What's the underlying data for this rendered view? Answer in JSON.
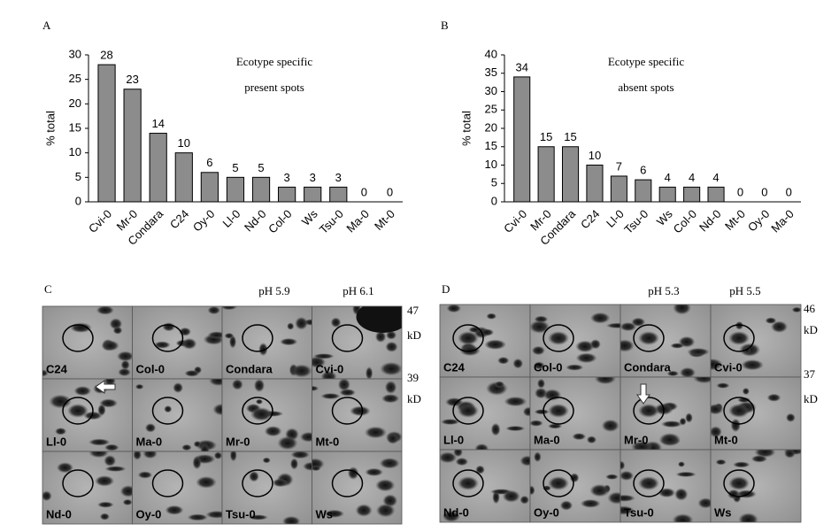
{
  "chart_data": [
    {
      "type": "bar",
      "panel": "A",
      "title": [
        "Ecotype specific",
        "present spots"
      ],
      "ylabel": "% total",
      "categories": [
        "Cvi-0",
        "Mr-0",
        "Condara",
        "C24",
        "Oy-0",
        "Ll-0",
        "Nd-0",
        "Col-0",
        "Ws",
        "Tsu-0",
        "Ma-0",
        "Mt-0"
      ],
      "values": [
        28,
        23,
        14,
        10,
        6,
        5,
        5,
        3,
        3,
        3,
        0,
        0
      ],
      "color": "#8c8c8c",
      "ylim": [
        0,
        30
      ],
      "yticks": [
        0,
        5,
        10,
        15,
        20,
        25,
        30
      ]
    },
    {
      "type": "bar",
      "panel": "B",
      "title": [
        "Ecotype specific",
        "absent spots"
      ],
      "ylabel": "% total",
      "categories": [
        "Cvi-0",
        "Mr-0",
        "Condara",
        "C24",
        "Ll-0",
        "Tsu-0",
        "Ws",
        "Col-0",
        "Nd-0",
        "Mt-0",
        "Oy-0",
        "Ma-0"
      ],
      "values": [
        34,
        15,
        15,
        10,
        7,
        6,
        4,
        4,
        4,
        0,
        0,
        0
      ],
      "color": "#8c8c8c",
      "ylim": [
        0,
        40
      ],
      "yticks": [
        0,
        5,
        10,
        15,
        20,
        25,
        30,
        35,
        40
      ]
    }
  ],
  "gels": [
    {
      "panel": "C",
      "ph_labels": [
        "pH 5.9",
        "pH 6.1"
      ],
      "markers": [
        {
          "value": "47",
          "unit": "kD"
        },
        {
          "value": "39",
          "unit": "kD"
        }
      ],
      "lanes": [
        "C24",
        "Col-0",
        "Condara",
        "Cvi-0",
        "Ll-0",
        "Ma-0",
        "Mr-0",
        "Mt-0",
        "Nd-0",
        "Oy-0",
        "Tsu-0",
        "Ws"
      ]
    },
    {
      "panel": "D",
      "ph_labels": [
        "pH 5.3",
        "pH 5.5"
      ],
      "markers": [
        {
          "value": "46",
          "unit": "kD"
        },
        {
          "value": "37",
          "unit": "kD"
        }
      ],
      "lanes": [
        "C24",
        "Col-0",
        "Condara",
        "Cvi-0",
        "Ll-0",
        "Ma-0",
        "Mr-0",
        "Mt-0",
        "Nd-0",
        "Oy-0",
        "Tsu-0",
        "Ws"
      ]
    }
  ]
}
